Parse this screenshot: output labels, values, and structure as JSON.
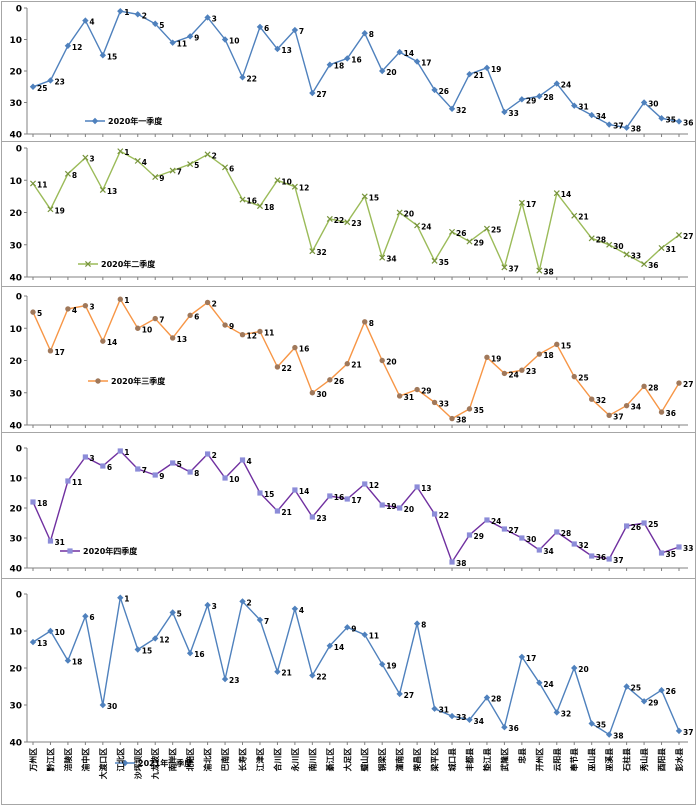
{
  "chart_data": {
    "type": "line",
    "categories": [
      "万州区",
      "黔江区",
      "涪陵区",
      "渝中区",
      "大渡口区",
      "江北区",
      "沙坪坝区",
      "九龙坡区",
      "南岸区",
      "北碚区",
      "渝北区",
      "巴南区",
      "长寿区",
      "江津区",
      "合川区",
      "永川区",
      "南川区",
      "綦江区",
      "大足区",
      "璧山区",
      "铜梁区",
      "潼南区",
      "荣昌区",
      "梁平区",
      "城口县",
      "丰都县",
      "垫江县",
      "武隆区",
      "忠县",
      "开州区",
      "云阳县",
      "奉节县",
      "巫山县",
      "巫溪县",
      "石柱县",
      "秀山县",
      "酉阳县",
      "彭水县"
    ],
    "ylim": [
      0,
      40
    ],
    "y_ticks": [
      "0",
      "10",
      "20",
      "30",
      "40"
    ],
    "y_inverted": true,
    "grid": false,
    "panels": [
      {
        "series": [
          {
            "name": "2020年一季度",
            "color": "#4f81bd",
            "marker": "diamond",
            "values": [
              25,
              23,
              12,
              4,
              15,
              1,
              2,
              5,
              11,
              9,
              3,
              10,
              22,
              6,
              13,
              7,
              27,
              18,
              16,
              8,
              20,
              14,
              17,
              26,
              32,
              21,
              19,
              33,
              29,
              28,
              24,
              31,
              34,
              37,
              38,
              30,
              35,
              36
            ]
          }
        ],
        "legend": "bottom-left"
      },
      {
        "series": [
          {
            "name": "2020年二季度",
            "color": "#77933c",
            "line_color": "#9bbb59",
            "marker": "x",
            "values": [
              11,
              19,
              8,
              3,
              13,
              1,
              4,
              9,
              7,
              5,
              2,
              6,
              16,
              18,
              10,
              12,
              32,
              22,
              23,
              15,
              34,
              20,
              24,
              35,
              26,
              29,
              25,
              37,
              17,
              38,
              14,
              21,
              28,
              30,
              33,
              36,
              31,
              27
            ]
          }
        ],
        "legend": "bottom-left"
      },
      {
        "series": [
          {
            "name": "2020年三季度",
            "color": "#f79646",
            "marker_color": "#a0785a",
            "marker": "circle",
            "values": [
              5,
              17,
              4,
              3,
              14,
              1,
              10,
              7,
              13,
              6,
              2,
              9,
              12,
              11,
              22,
              16,
              30,
              26,
              21,
              8,
              20,
              31,
              29,
              33,
              38,
              35,
              19,
              24,
              23,
              18,
              15,
              25,
              32,
              37,
              34,
              28,
              36,
              27
            ]
          }
        ],
        "legend": "bottom-left"
      },
      {
        "series": [
          {
            "name": "2020年四季度",
            "color": "#7030a0",
            "marker_color": "#8c8cd8",
            "marker": "square",
            "values": [
              18,
              31,
              11,
              3,
              6,
              1,
              7,
              9,
              5,
              8,
              2,
              10,
              4,
              15,
              21,
              14,
              23,
              16,
              17,
              12,
              19,
              20,
              13,
              22,
              38,
              29,
              24,
              27,
              30,
              34,
              28,
              32,
              36,
              37,
              26,
              25,
              35,
              33
            ]
          }
        ],
        "legend": "bottom-left"
      },
      {
        "series": [
          {
            "name": "2021年一季度",
            "color": "#4f81bd",
            "marker": "diamond",
            "values": [
              13,
              10,
              18,
              6,
              30,
              1,
              15,
              12,
              5,
              16,
              3,
              23,
              2,
              7,
              21,
              4,
              22,
              14,
              9,
              11,
              19,
              27,
              8,
              31,
              33,
              34,
              28,
              36,
              17,
              24,
              32,
              20,
              35,
              38,
              25,
              29,
              26,
              37
            ]
          }
        ],
        "legend": "bottom-center"
      }
    ]
  }
}
